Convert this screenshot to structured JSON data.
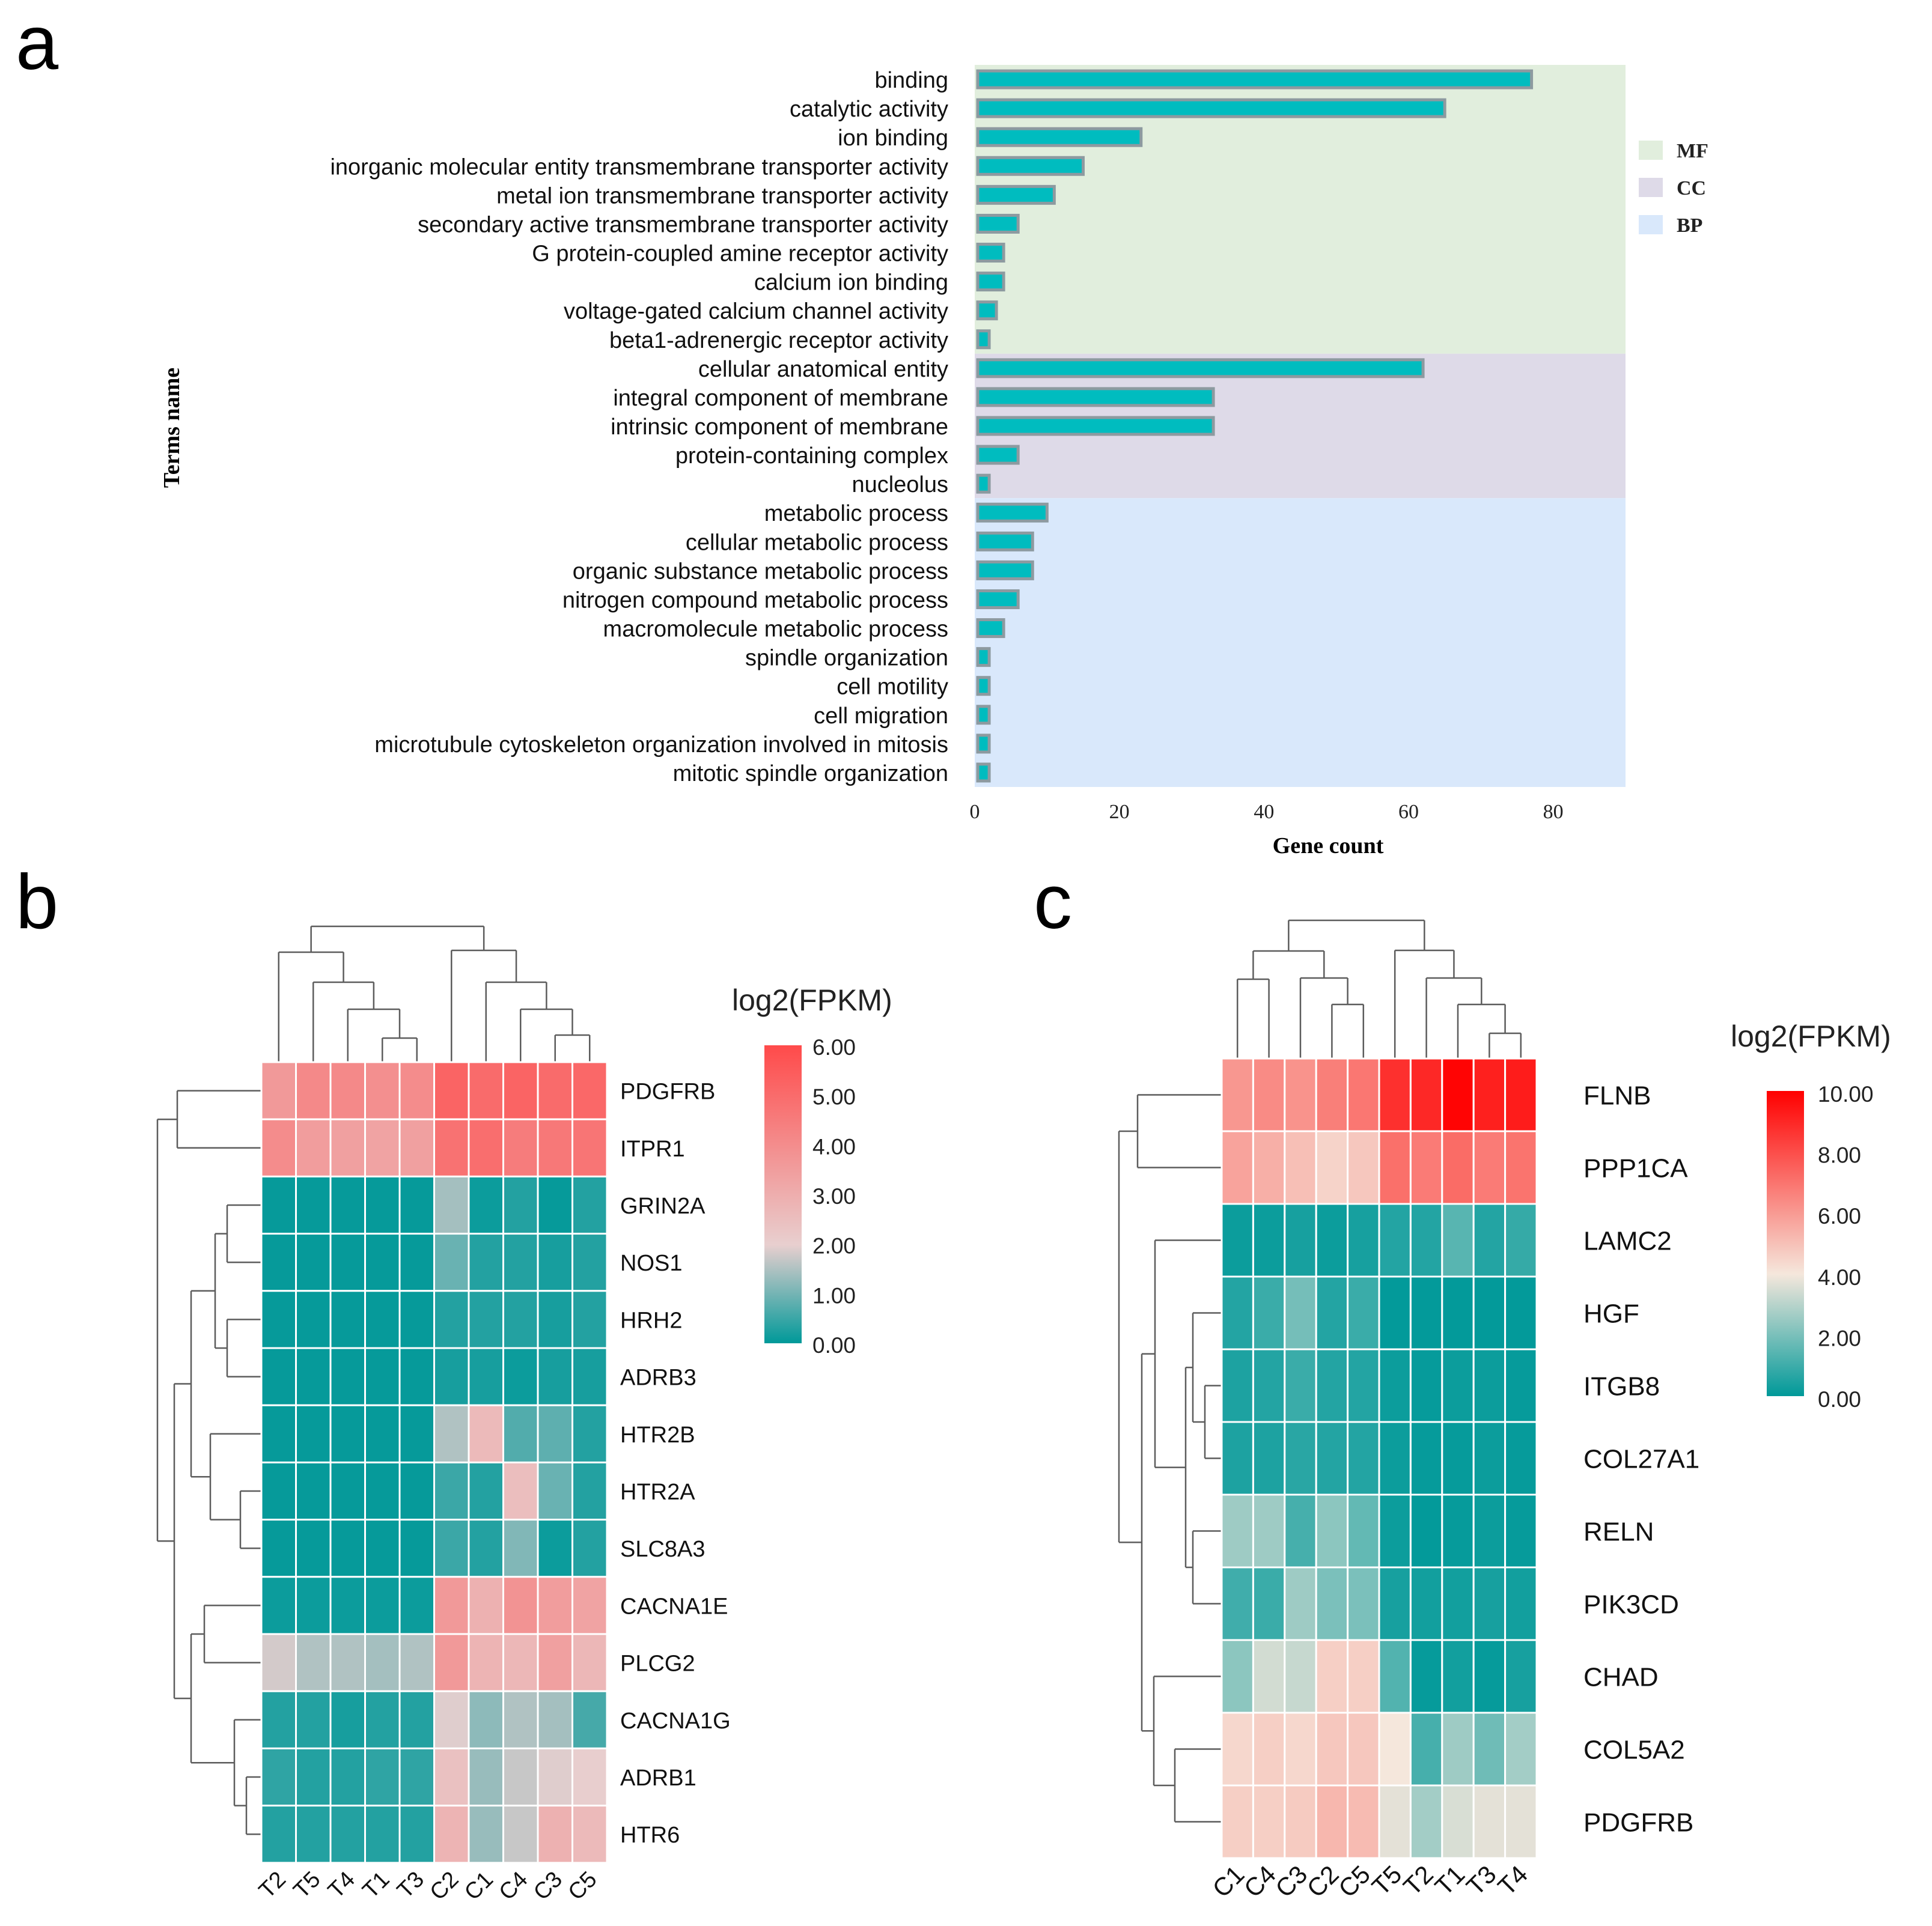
{
  "colors": {
    "bar_fill": "#00bcbf",
    "bar_stroke": "#8d9aa0",
    "MF_bg": "#e1eedd",
    "CC_bg": "#dedae8",
    "BP_bg": "#d9e8fb",
    "heat_low": "#009999",
    "heat_mid": "#f5e7dc",
    "heat_high": "#ff4a4a",
    "heat_high_c": "#ff0000"
  },
  "chart_data": [
    {
      "panel": "a",
      "type": "bar",
      "orientation": "horizontal",
      "xlabel": "Gene count",
      "ylabel": "Terms name",
      "xlim": [
        0,
        90
      ],
      "xticks": [
        "0",
        "20",
        "40",
        "60",
        "80"
      ],
      "legend": [
        "MF",
        "CC",
        "BP"
      ],
      "categories": [
        "binding",
        "catalytic activity",
        "ion binding",
        "inorganic molecular entity transmembrane transporter activity",
        "metal ion transmembrane transporter activity",
        "secondary active transmembrane transporter activity",
        "G protein-coupled amine receptor activity",
        "calcium ion binding",
        "voltage-gated calcium channel activity",
        "beta1-adrenergic receptor activity",
        "cellular anatomical entity",
        "integral component of membrane",
        "intrinsic component of membrane",
        "protein-containing complex",
        "nucleolus",
        "metabolic process",
        "cellular metabolic process",
        "organic substance metabolic process",
        "nitrogen compound metabolic process",
        "macromolecule metabolic process",
        "spindle organization",
        "cell motility",
        "cell migration",
        "microtubule cytoskeleton organization involved in mitosis",
        "mitotic spindle organization"
      ],
      "values": [
        77,
        65,
        23,
        15,
        11,
        6,
        4,
        4,
        3,
        2,
        62,
        33,
        33,
        6,
        2,
        10,
        8,
        8,
        6,
        4,
        2,
        2,
        2,
        2,
        2
      ],
      "groups": [
        "MF",
        "MF",
        "MF",
        "MF",
        "MF",
        "MF",
        "MF",
        "MF",
        "MF",
        "MF",
        "CC",
        "CC",
        "CC",
        "CC",
        "CC",
        "BP",
        "BP",
        "BP",
        "BP",
        "BP",
        "BP",
        "BP",
        "BP",
        "BP",
        "BP"
      ]
    },
    {
      "panel": "b",
      "type": "heatmap",
      "legend_title": "log2(FPKM)",
      "scale_ticks": [
        "6.00",
        "5.00",
        "4.00",
        "3.00",
        "2.00",
        "1.00",
        "0.00"
      ],
      "scale_max": 6,
      "columns": [
        "T2",
        "T5",
        "T4",
        "T1",
        "T3",
        "C2",
        "C1",
        "C4",
        "C3",
        "C5"
      ],
      "rows": [
        "PDGFRB",
        "ITPR1",
        "GRIN2A",
        "NOS1",
        "HRH2",
        "ADRB3",
        "HTR2B",
        "HTR2A",
        "SLC8A3",
        "CACNA1E",
        "PLCG2",
        "CACNA1G",
        "ADRB1",
        "HTR6"
      ],
      "values": [
        [
          3.6,
          4.1,
          4.1,
          3.9,
          4.0,
          5.2,
          5.0,
          5.2,
          5.0,
          5.1
        ],
        [
          4.0,
          3.5,
          3.4,
          3.3,
          3.4,
          4.8,
          4.9,
          4.5,
          4.6,
          4.7
        ],
        [
          0.05,
          0.05,
          0.05,
          0.05,
          0.05,
          1.4,
          0.1,
          0.3,
          0.05,
          0.3
        ],
        [
          0.05,
          0.05,
          0.05,
          0.05,
          0.05,
          0.9,
          0.3,
          0.3,
          0.2,
          0.3
        ],
        [
          0.05,
          0.05,
          0.05,
          0.05,
          0.05,
          0.3,
          0.3,
          0.3,
          0.2,
          0.3
        ],
        [
          0.05,
          0.05,
          0.05,
          0.05,
          0.05,
          0.2,
          0.2,
          0.1,
          0.2,
          0.2
        ],
        [
          0.05,
          0.05,
          0.05,
          0.05,
          0.05,
          1.5,
          2.6,
          0.7,
          0.8,
          0.3
        ],
        [
          0.05,
          0.05,
          0.05,
          0.05,
          0.05,
          0.5,
          0.3,
          2.5,
          0.9,
          0.3
        ],
        [
          0.05,
          0.05,
          0.05,
          0.05,
          0.05,
          0.5,
          0.3,
          1.1,
          0.1,
          0.3
        ],
        [
          0.1,
          0.1,
          0.1,
          0.1,
          0.1,
          3.6,
          2.9,
          3.8,
          3.5,
          3.3
        ],
        [
          1.8,
          1.5,
          1.5,
          1.4,
          1.5,
          3.6,
          2.8,
          2.7,
          3.4,
          2.7
        ],
        [
          0.3,
          0.3,
          0.2,
          0.3,
          0.3,
          1.9,
          1.2,
          1.5,
          1.4,
          0.6
        ],
        [
          0.4,
          0.3,
          0.3,
          0.4,
          0.4,
          2.4,
          1.3,
          1.7,
          1.9,
          2.0
        ],
        [
          0.3,
          0.3,
          0.3,
          0.3,
          0.3,
          2.8,
          1.3,
          1.7,
          2.9,
          2.6
        ]
      ]
    },
    {
      "panel": "c",
      "type": "heatmap",
      "legend_title": "log2(FPKM)",
      "scale_ticks": [
        "10.00",
        "8.00",
        "6.00",
        "4.00",
        "2.00",
        "0.00"
      ],
      "scale_max": 10,
      "columns": [
        "C1",
        "C4",
        "C3",
        "C2",
        "C5",
        "T5",
        "T2",
        "T1",
        "T3",
        "T4"
      ],
      "rows": [
        "FLNB",
        "PPP1CA",
        "LAMC2",
        "HGF",
        "ITGB8",
        "COL27A1",
        "RELN",
        "PIK3CD",
        "CHAD",
        "COL5A2",
        "PDGFRB"
      ],
      "values": [
        [
          6.2,
          6.5,
          6.3,
          6.8,
          7.0,
          8.8,
          9.0,
          9.9,
          9.2,
          9.3
        ],
        [
          5.9,
          5.6,
          5.2,
          4.7,
          5.0,
          7.2,
          6.9,
          7.3,
          6.9,
          7.1
        ],
        [
          0.2,
          0.2,
          0.4,
          0.2,
          0.4,
          0.6,
          0.6,
          1.5,
          0.6,
          0.9
        ],
        [
          0.6,
          1.0,
          2.0,
          0.6,
          1.0,
          0.05,
          0.05,
          0.05,
          0.05,
          0.05
        ],
        [
          0.5,
          0.6,
          1.0,
          0.6,
          0.6,
          0.2,
          0.1,
          0.2,
          0.2,
          0.1
        ],
        [
          0.5,
          0.5,
          0.7,
          0.6,
          0.6,
          0.2,
          0.1,
          0.1,
          0.2,
          0.1
        ],
        [
          2.7,
          2.7,
          1.2,
          2.4,
          1.7,
          0.2,
          0.05,
          0.1,
          0.2,
          0.1
        ],
        [
          1.1,
          1.0,
          2.7,
          2.1,
          2.1,
          0.4,
          0.3,
          0.3,
          0.4,
          0.3
        ],
        [
          2.4,
          3.6,
          3.4,
          4.8,
          4.8,
          1.4,
          0.1,
          0.3,
          0.1,
          0.4
        ],
        [
          4.6,
          4.8,
          4.6,
          5.0,
          5.0,
          4.2,
          1.2,
          2.7,
          1.9,
          2.8
        ],
        [
          4.8,
          4.8,
          4.9,
          5.4,
          5.3,
          3.9,
          2.8,
          3.7,
          3.9,
          3.9
        ]
      ]
    }
  ]
}
